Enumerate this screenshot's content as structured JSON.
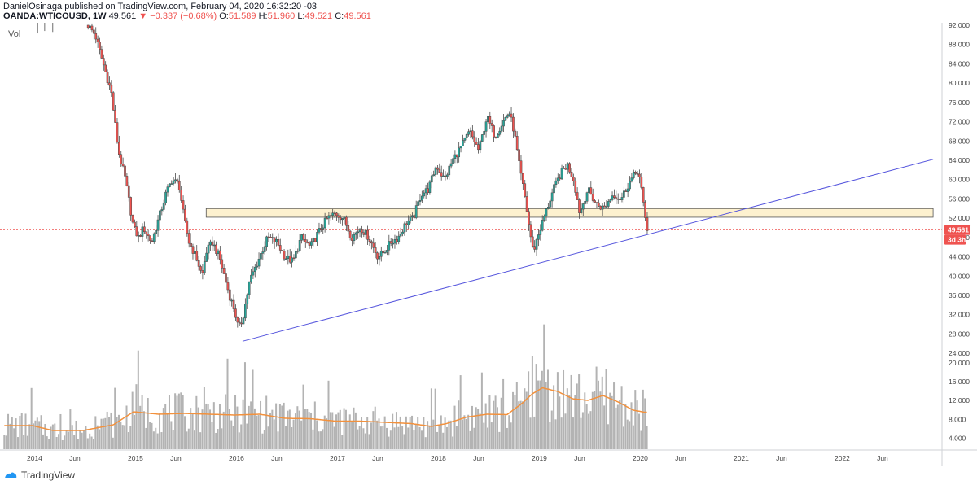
{
  "header": {
    "published_line": "DanielOsinaga published on TradingView.com, February 04, 2020 16:32:20 -03",
    "symbol": "OANDA:WTICOUSD, 1W",
    "price": "49.561",
    "change": "−0.337 (−0.68%)",
    "o_label": "O:",
    "o_value": "51.589",
    "h_label": "H:",
    "h_value": "51.960",
    "l_label": "L:",
    "l_value": "49.521",
    "c_label": "C:",
    "c_value": "49.561"
  },
  "volume_label": "Vol",
  "footer": {
    "brand": "TradingView"
  },
  "colors": {
    "up": "#26a69a",
    "down": "#ef5350",
    "candle": "#4a4a4a",
    "trendline": "#5555dd",
    "zone_fill": "#fdf1cf",
    "volume": "#b3b3b3",
    "volume_ma": "#f2913d",
    "price_badge": "#ef5350"
  },
  "chart_data": {
    "type": "candlestick",
    "price_badge": "49.561",
    "countdown_badge": "3d 3h",
    "y_ticks": [
      "92.000",
      "88.000",
      "84.000",
      "80.000",
      "76.000",
      "72.000",
      "68.000",
      "64.000",
      "60.000",
      "56.000",
      "52.000",
      "48.000",
      "44.000",
      "40.000",
      "36.000",
      "32.000",
      "28.000",
      "24.000",
      "20.000",
      "16.000",
      "12.000",
      "8.000",
      "4.000"
    ],
    "y_tick_values": [
      92,
      88,
      84,
      80,
      76,
      72,
      68,
      64,
      60,
      56,
      52,
      48,
      44,
      40,
      36,
      32,
      28,
      24,
      20,
      16,
      12,
      8,
      4
    ],
    "x_ticks": [
      "2014",
      "Jun",
      "2015",
      "Jun",
      "2016",
      "Jun",
      "2017",
      "Jun",
      "2018",
      "Jun",
      "2019",
      "Jun",
      "2020",
      "Jun",
      "2021",
      "Jun",
      "2022",
      "Jun"
    ],
    "x_tick_dates": [
      2014.0,
      2014.42,
      2015.0,
      2015.42,
      2016.0,
      2016.42,
      2017.0,
      2017.42,
      2018.0,
      2018.42,
      2019.0,
      2019.42,
      2020.0,
      2020.42,
      2021.0,
      2021.42,
      2022.0,
      2022.42
    ],
    "price_range": [
      22,
      92.5
    ],
    "last_price": 49.561,
    "close_path": [
      [
        2014.55,
        92
      ],
      [
        2014.62,
        90
      ],
      [
        2014.7,
        84
      ],
      [
        2014.78,
        78
      ],
      [
        2014.85,
        66
      ],
      [
        2014.92,
        60
      ],
      [
        2015.0,
        50
      ],
      [
        2015.05,
        48
      ],
      [
        2015.1,
        50
      ],
      [
        2015.18,
        47
      ],
      [
        2015.25,
        52
      ],
      [
        2015.32,
        57
      ],
      [
        2015.38,
        60
      ],
      [
        2015.45,
        59
      ],
      [
        2015.5,
        52
      ],
      [
        2015.55,
        47
      ],
      [
        2015.62,
        44
      ],
      [
        2015.68,
        40
      ],
      [
        2015.72,
        45
      ],
      [
        2015.78,
        47
      ],
      [
        2015.85,
        44
      ],
      [
        2015.9,
        40
      ],
      [
        2015.95,
        36
      ],
      [
        2016.0,
        33
      ],
      [
        2016.04,
        29
      ],
      [
        2016.08,
        31
      ],
      [
        2016.15,
        39
      ],
      [
        2016.25,
        44
      ],
      [
        2016.33,
        48
      ],
      [
        2016.42,
        47
      ],
      [
        2016.5,
        44
      ],
      [
        2016.58,
        43
      ],
      [
        2016.66,
        48
      ],
      [
        2016.75,
        46
      ],
      [
        2016.83,
        49
      ],
      [
        2016.92,
        52
      ],
      [
        2017.0,
        53
      ],
      [
        2017.08,
        52
      ],
      [
        2017.16,
        48
      ],
      [
        2017.25,
        50
      ],
      [
        2017.33,
        48
      ],
      [
        2017.42,
        44
      ],
      [
        2017.48,
        45
      ],
      [
        2017.55,
        47
      ],
      [
        2017.62,
        48
      ],
      [
        2017.7,
        51
      ],
      [
        2017.77,
        52
      ],
      [
        2017.85,
        57
      ],
      [
        2017.92,
        58
      ],
      [
        2018.0,
        63
      ],
      [
        2018.08,
        60
      ],
      [
        2018.16,
        64
      ],
      [
        2018.25,
        67
      ],
      [
        2018.33,
        70
      ],
      [
        2018.42,
        66
      ],
      [
        2018.5,
        73
      ],
      [
        2018.58,
        69
      ],
      [
        2018.66,
        72
      ],
      [
        2018.72,
        74
      ],
      [
        2018.77,
        70
      ],
      [
        2018.82,
        63
      ],
      [
        2018.88,
        56
      ],
      [
        2018.92,
        50
      ],
      [
        2018.96,
        45
      ],
      [
        2019.0,
        48
      ],
      [
        2019.08,
        53
      ],
      [
        2019.16,
        58
      ],
      [
        2019.25,
        62
      ],
      [
        2019.3,
        63
      ],
      [
        2019.36,
        60
      ],
      [
        2019.42,
        53
      ],
      [
        2019.5,
        58
      ],
      [
        2019.58,
        55
      ],
      [
        2019.66,
        54
      ],
      [
        2019.75,
        57
      ],
      [
        2019.83,
        56
      ],
      [
        2019.9,
        59
      ],
      [
        2019.96,
        61
      ],
      [
        2020.0,
        62
      ],
      [
        2020.03,
        58
      ],
      [
        2020.06,
        53
      ],
      [
        2020.09,
        49.561
      ]
    ],
    "trendline": {
      "from": [
        2016.08,
        26.5
      ],
      "to": [
        2022.92,
        64.2
      ]
    },
    "resistance_zone": {
      "from_date": 2015.72,
      "to_date": 2022.92,
      "low": 52.2,
      "high": 54.0
    },
    "volume": {
      "max": 26,
      "ma_points": [
        [
          2014.0,
          5.8
        ],
        [
          2014.2,
          4.6
        ],
        [
          2014.5,
          4.6
        ],
        [
          2014.8,
          6.0
        ],
        [
          2015.0,
          9.2
        ],
        [
          2015.25,
          8.6
        ],
        [
          2015.5,
          8.8
        ],
        [
          2015.75,
          8.6
        ],
        [
          2016.0,
          8.4
        ],
        [
          2016.25,
          8.6
        ],
        [
          2016.5,
          7.6
        ],
        [
          2016.75,
          7.5
        ],
        [
          2017.0,
          6.9
        ],
        [
          2017.25,
          6.9
        ],
        [
          2017.5,
          6.6
        ],
        [
          2017.75,
          6.3
        ],
        [
          2017.95,
          5.6
        ],
        [
          2018.1,
          6.3
        ],
        [
          2018.3,
          7.9
        ],
        [
          2018.5,
          8.6
        ],
        [
          2018.7,
          8.5
        ],
        [
          2018.85,
          11.3
        ],
        [
          2018.95,
          13.6
        ],
        [
          2019.05,
          15.1
        ],
        [
          2019.2,
          14.2
        ],
        [
          2019.35,
          12.4
        ],
        [
          2019.5,
          12.0
        ],
        [
          2019.65,
          13.2
        ],
        [
          2019.8,
          11.6
        ],
        [
          2019.95,
          9.6
        ],
        [
          2020.06,
          9.1
        ]
      ]
    }
  }
}
